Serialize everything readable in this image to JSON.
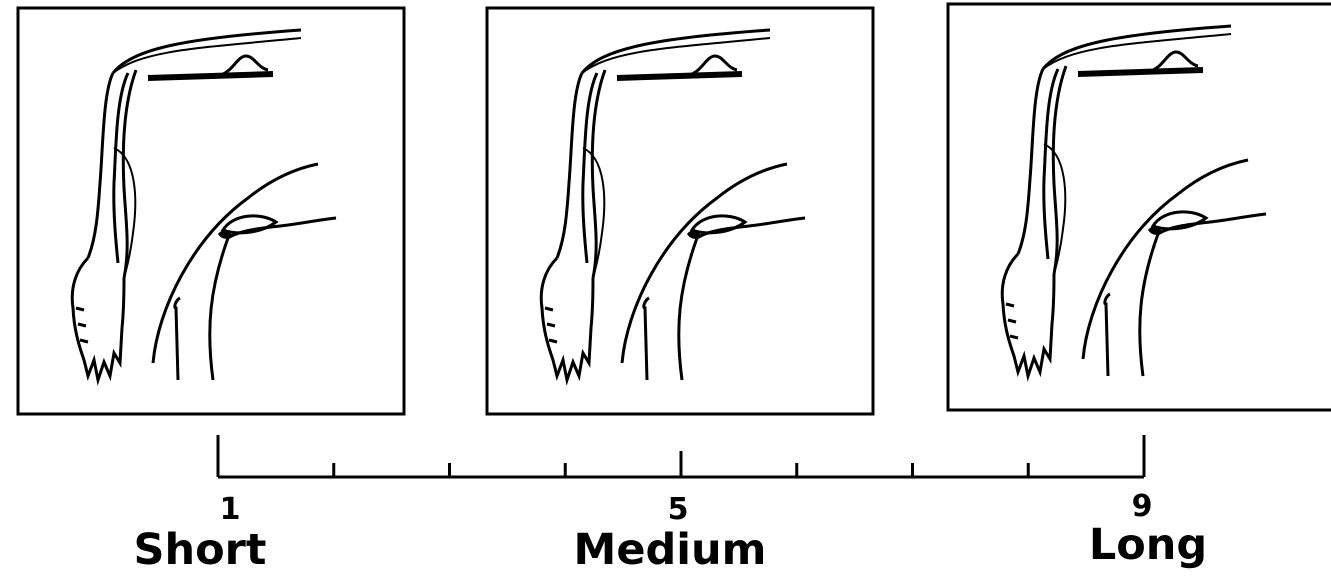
{
  "scale": {
    "min": 1,
    "max": 9,
    "tick_count": 9,
    "labels": [
      {
        "number": "1",
        "word": "Short"
      },
      {
        "number": "5",
        "word": "Medium"
      },
      {
        "number": "9",
        "word": "Long"
      }
    ]
  },
  "colors": {
    "ink": "#000000",
    "background": "#ffffff"
  }
}
